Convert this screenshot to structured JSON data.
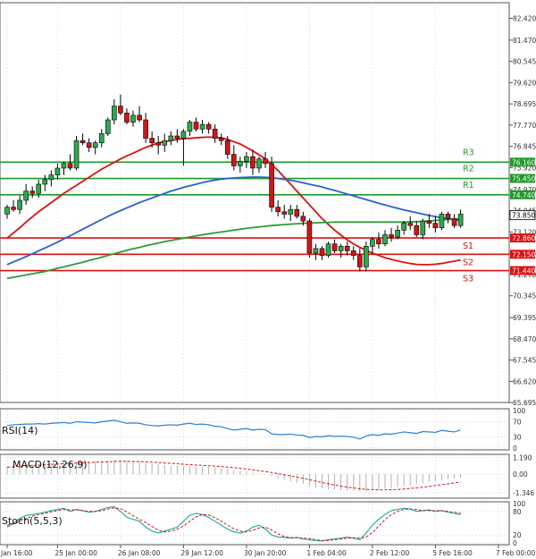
{
  "chart_data": {
    "type": "candlestick",
    "price_axis": {
      "ylim": [
        65.7,
        83.1
      ],
      "tick_labels": [
        "82.420",
        "81.470",
        "80.545",
        "79.620",
        "78.695",
        "77.770",
        "76.845",
        "75.920",
        "74.970",
        "74.045",
        "73.120",
        "72.195",
        "71.270",
        "70.345",
        "69.395",
        "68.470",
        "67.545",
        "66.620",
        "65.695"
      ],
      "current_price": "73.850"
    },
    "time_axis": {
      "labels": [
        "Jan 16:00",
        "25 Jan 00:00",
        "26 Jan 08:00",
        "29 Jan 12:00",
        "30 Jan 20:00",
        "1 Feb 04:00",
        "2 Feb 12:00",
        "5 Feb 16:00",
        "7 Feb 00:00"
      ],
      "label_index": [
        0,
        8,
        18,
        28,
        38,
        48,
        58,
        68,
        78
      ]
    },
    "candles": [
      [
        73.9,
        74.3,
        73.7,
        74.2
      ],
      [
        74.2,
        74.5,
        74.0,
        74.1
      ],
      [
        74.1,
        74.7,
        73.9,
        74.5
      ],
      [
        74.5,
        75.2,
        74.3,
        74.9
      ],
      [
        74.9,
        75.1,
        74.6,
        74.8
      ],
      [
        74.8,
        75.4,
        74.6,
        75.2
      ],
      [
        75.2,
        75.6,
        74.9,
        75.4
      ],
      [
        75.4,
        75.8,
        75.1,
        75.6
      ],
      [
        75.6,
        76.1,
        75.4,
        75.9
      ],
      [
        75.9,
        76.2,
        75.6,
        76.1
      ],
      [
        76.1,
        76.5,
        75.8,
        75.9
      ],
      [
        75.9,
        77.3,
        75.8,
        77.1
      ],
      [
        77.1,
        77.4,
        76.9,
        77.0
      ],
      [
        77.0,
        77.2,
        76.6,
        76.8
      ],
      [
        76.8,
        77.1,
        76.5,
        77.0
      ],
      [
        77.0,
        77.6,
        76.8,
        77.4
      ],
      [
        77.4,
        78.1,
        77.3,
        78.0
      ],
      [
        78.0,
        78.9,
        77.8,
        78.6
      ],
      [
        78.6,
        79.1,
        78.2,
        78.3
      ],
      [
        78.3,
        78.5,
        77.8,
        77.9
      ],
      [
        77.9,
        78.4,
        77.7,
        78.2
      ],
      [
        78.2,
        78.6,
        77.9,
        78.0
      ],
      [
        78.0,
        78.3,
        77.0,
        77.2
      ],
      [
        77.2,
        77.5,
        76.8,
        77.0
      ],
      [
        77.0,
        77.3,
        76.5,
        76.9
      ],
      [
        76.9,
        77.4,
        76.6,
        77.1
      ],
      [
        77.1,
        77.5,
        76.9,
        77.3
      ],
      [
        77.3,
        77.6,
        77.0,
        77.2
      ],
      [
        77.2,
        77.6,
        76.0,
        77.5
      ],
      [
        77.5,
        78.0,
        77.3,
        77.9
      ],
      [
        77.9,
        78.1,
        77.5,
        77.6
      ],
      [
        77.6,
        78.0,
        77.4,
        77.8
      ],
      [
        77.8,
        77.9,
        77.4,
        77.6
      ],
      [
        77.6,
        77.8,
        77.0,
        77.2
      ],
      [
        77.2,
        77.4,
        76.9,
        77.1
      ],
      [
        77.1,
        77.3,
        76.3,
        76.5
      ],
      [
        76.5,
        76.9,
        75.8,
        76.0
      ],
      [
        76.0,
        76.4,
        75.7,
        76.2
      ],
      [
        76.2,
        76.6,
        75.9,
        76.4
      ],
      [
        76.4,
        76.7,
        75.6,
        75.9
      ],
      [
        75.9,
        76.4,
        75.7,
        76.3
      ],
      [
        76.3,
        76.6,
        75.9,
        76.1
      ],
      [
        76.1,
        76.4,
        74.0,
        74.2
      ],
      [
        74.2,
        74.5,
        73.8,
        74.0
      ],
      [
        74.0,
        74.3,
        73.7,
        73.9
      ],
      [
        73.9,
        74.3,
        73.6,
        74.1
      ],
      [
        74.1,
        74.3,
        73.7,
        73.8
      ],
      [
        73.8,
        74.0,
        73.4,
        73.6
      ],
      [
        73.6,
        73.7,
        72.0,
        72.2
      ],
      [
        72.2,
        72.6,
        71.9,
        72.4
      ],
      [
        72.4,
        72.5,
        71.9,
        72.1
      ],
      [
        72.1,
        72.7,
        72.0,
        72.6
      ],
      [
        72.6,
        72.8,
        72.2,
        72.3
      ],
      [
        72.3,
        72.6,
        72.0,
        72.5
      ],
      [
        72.5,
        72.7,
        72.1,
        72.3
      ],
      [
        72.3,
        72.5,
        71.9,
        72.1
      ],
      [
        72.1,
        72.4,
        71.4,
        71.6
      ],
      [
        71.6,
        72.7,
        71.4,
        72.5
      ],
      [
        72.5,
        72.9,
        72.2,
        72.8
      ],
      [
        72.8,
        73.1,
        72.4,
        72.6
      ],
      [
        72.6,
        73.2,
        72.5,
        73.0
      ],
      [
        73.0,
        73.3,
        72.7,
        72.9
      ],
      [
        72.9,
        73.4,
        72.8,
        73.2
      ],
      [
        73.2,
        73.6,
        73.0,
        73.5
      ],
      [
        73.5,
        73.8,
        73.2,
        73.4
      ],
      [
        73.4,
        73.6,
        72.9,
        73.0
      ],
      [
        73.0,
        73.7,
        72.8,
        73.6
      ],
      [
        73.6,
        73.9,
        73.3,
        73.5
      ],
      [
        73.5,
        73.8,
        73.1,
        73.3
      ],
      [
        73.3,
        74.0,
        73.2,
        73.9
      ],
      [
        73.9,
        74.0,
        73.5,
        73.7
      ],
      [
        73.7,
        73.9,
        73.3,
        73.4
      ],
      [
        73.4,
        74.1,
        73.3,
        73.9
      ]
    ],
    "moving_averages": [
      {
        "name": "MA fast (red)",
        "color": "#dd1111",
        "values": [
          72.85,
          73.08,
          73.3,
          73.55,
          73.78,
          74.0,
          74.2,
          74.4,
          74.6,
          74.8,
          74.98,
          75.15,
          75.33,
          75.5,
          75.68,
          75.85,
          76.0,
          76.15,
          76.3,
          76.43,
          76.55,
          76.68,
          76.8,
          76.9,
          77.0,
          77.05,
          77.1,
          77.15,
          77.18,
          77.2,
          77.22,
          77.24,
          77.25,
          77.24,
          77.22,
          77.15,
          77.05,
          76.95,
          76.8,
          76.65,
          76.48,
          76.3,
          76.05,
          75.8,
          75.5,
          75.2,
          74.9,
          74.6,
          74.3,
          74.0,
          73.7,
          73.45,
          73.2,
          72.98,
          72.78,
          72.6,
          72.45,
          72.32,
          72.2,
          72.1,
          72.0,
          71.93,
          71.86,
          71.8,
          71.75,
          71.71,
          71.7,
          71.7,
          71.72,
          71.75,
          71.8,
          71.85,
          71.9
        ]
      },
      {
        "name": "MA medium (blue)",
        "color": "#2b5fd0",
        "values": [
          71.7,
          71.82,
          71.93,
          72.05,
          72.17,
          72.3,
          72.42,
          72.55,
          72.68,
          72.82,
          72.95,
          73.1,
          73.24,
          73.38,
          73.52,
          73.66,
          73.8,
          73.93,
          74.05,
          74.17,
          74.28,
          74.4,
          74.5,
          74.6,
          74.7,
          74.8,
          74.9,
          74.98,
          75.06,
          75.13,
          75.2,
          75.27,
          75.33,
          75.38,
          75.42,
          75.45,
          75.47,
          75.49,
          75.5,
          75.51,
          75.51,
          75.5,
          75.48,
          75.45,
          75.41,
          75.37,
          75.32,
          75.26,
          75.2,
          75.14,
          75.08,
          75.0,
          74.93,
          74.85,
          74.77,
          74.69,
          74.61,
          74.53,
          74.45,
          74.37,
          74.3,
          74.22,
          74.15,
          74.08,
          74.02,
          73.96,
          73.9,
          73.84,
          73.79,
          73.74,
          73.7,
          73.66,
          73.62
        ]
      },
      {
        "name": "MA slow (green)",
        "color": "#2e9a3a",
        "values": [
          71.1,
          71.15,
          71.2,
          71.25,
          71.3,
          71.35,
          71.4,
          71.47,
          71.54,
          71.6,
          71.67,
          71.74,
          71.8,
          71.88,
          71.95,
          72.02,
          72.1,
          72.17,
          72.25,
          72.32,
          72.39,
          72.45,
          72.52,
          72.58,
          72.64,
          72.7,
          72.75,
          72.8,
          72.85,
          72.9,
          72.95,
          73.0,
          73.04,
          73.08,
          73.12,
          73.16,
          73.2,
          73.24,
          73.28,
          73.31,
          73.34,
          73.37,
          73.4,
          73.42,
          73.44,
          73.46,
          73.48,
          73.5,
          73.51,
          73.52,
          73.53,
          73.54,
          73.55,
          73.55,
          73.55,
          73.55,
          73.55,
          73.55,
          73.55,
          73.55,
          73.55,
          73.55,
          73.55,
          73.55,
          73.56,
          73.57,
          73.58,
          73.6,
          73.62,
          73.64,
          73.66,
          73.68,
          73.7
        ]
      }
    ],
    "levels": [
      {
        "name": "R3",
        "value": 76.16,
        "label": "76.160",
        "color": "#1f9a2a"
      },
      {
        "name": "R2",
        "value": 75.45,
        "label": "75.450",
        "color": "#1f9a2a"
      },
      {
        "name": "R1",
        "value": 74.74,
        "label": "74.740",
        "color": "#1f9a2a"
      },
      {
        "name": "S1",
        "value": 72.86,
        "label": "72.860",
        "color": "#dd1111"
      },
      {
        "name": "S2",
        "value": 72.15,
        "label": "72.150",
        "color": "#dd1111"
      },
      {
        "name": "S3",
        "value": 71.44,
        "label": "71.440",
        "color": "#dd1111"
      }
    ],
    "rsi": {
      "label": "RSI(14)",
      "ylim": [
        0,
        100
      ],
      "ticks": [
        "100",
        "70",
        "30",
        "0"
      ],
      "tick_values": [
        100,
        70,
        30,
        0
      ],
      "color": "#2b7fd0",
      "values": [
        60,
        62,
        63,
        64,
        64,
        65,
        64,
        66,
        67,
        68,
        66,
        70,
        69,
        68,
        67,
        70,
        72,
        74,
        70,
        66,
        67,
        66,
        62,
        60,
        59,
        61,
        62,
        61,
        64,
        66,
        63,
        64,
        62,
        58,
        57,
        52,
        48,
        50,
        52,
        48,
        50,
        49,
        38,
        36,
        36,
        37,
        35,
        34,
        28,
        31,
        30,
        33,
        31,
        32,
        31,
        29,
        24,
        32,
        36,
        34,
        38,
        37,
        40,
        43,
        41,
        39,
        44,
        43,
        42,
        47,
        45,
        43,
        48
      ]
    },
    "macd": {
      "label": "MACD(12,26,9)",
      "ylim": [
        -1.6,
        1.3
      ],
      "ticks": [
        "1.190",
        "0.00",
        "-1.346"
      ],
      "tick_values": [
        1.19,
        0.0,
        -1.346
      ],
      "hist_color": "#b0b0b0",
      "signal_color": "#dd1111",
      "histogram": [
        0.55,
        0.6,
        0.65,
        0.7,
        0.72,
        0.75,
        0.78,
        0.8,
        0.82,
        0.85,
        0.85,
        0.9,
        0.92,
        0.93,
        0.93,
        0.95,
        0.98,
        1.02,
        1.0,
        0.95,
        0.92,
        0.88,
        0.82,
        0.76,
        0.7,
        0.66,
        0.62,
        0.6,
        0.58,
        0.57,
        0.55,
        0.54,
        0.52,
        0.48,
        0.44,
        0.38,
        0.3,
        0.24,
        0.18,
        0.1,
        0.05,
        0.0,
        -0.15,
        -0.3,
        -0.42,
        -0.52,
        -0.62,
        -0.7,
        -0.85,
        -0.95,
        -1.02,
        -1.08,
        -1.12,
        -1.16,
        -1.18,
        -1.2,
        -1.25,
        -1.22,
        -1.18,
        -1.12,
        -1.06,
        -1.0,
        -0.93,
        -0.86,
        -0.79,
        -0.72,
        -0.64,
        -0.57,
        -0.5,
        -0.43,
        -0.36,
        -0.3,
        -0.24
      ],
      "signal": [
        0.5,
        0.53,
        0.56,
        0.59,
        0.62,
        0.65,
        0.68,
        0.71,
        0.73,
        0.76,
        0.78,
        0.8,
        0.82,
        0.84,
        0.86,
        0.88,
        0.9,
        0.92,
        0.93,
        0.93,
        0.92,
        0.91,
        0.89,
        0.87,
        0.84,
        0.81,
        0.78,
        0.75,
        0.72,
        0.69,
        0.66,
        0.64,
        0.61,
        0.58,
        0.55,
        0.51,
        0.47,
        0.42,
        0.37,
        0.31,
        0.25,
        0.19,
        0.12,
        0.04,
        -0.04,
        -0.12,
        -0.21,
        -0.3,
        -0.4,
        -0.5,
        -0.6,
        -0.69,
        -0.78,
        -0.86,
        -0.93,
        -0.99,
        -1.05,
        -1.09,
        -1.12,
        -1.13,
        -1.13,
        -1.12,
        -1.1,
        -1.07,
        -1.03,
        -0.99,
        -0.94,
        -0.88,
        -0.82,
        -0.76,
        -0.7,
        -0.63,
        -0.56
      ]
    },
    "stoch": {
      "label": "Stoch(5,5,3)",
      "ylim": [
        0,
        100
      ],
      "ticks": [
        "100",
        "80",
        "20",
        "0"
      ],
      "tick_values": [
        100,
        80,
        20,
        0
      ],
      "k_color": "#1aa5a5",
      "d_color": "#dd1111",
      "k": [
        40,
        50,
        62,
        70,
        72,
        75,
        78,
        82,
        85,
        88,
        80,
        85,
        82,
        78,
        80,
        85,
        90,
        92,
        80,
        65,
        60,
        55,
        40,
        30,
        25,
        30,
        35,
        40,
        55,
        70,
        75,
        72,
        65,
        55,
        45,
        35,
        28,
        25,
        30,
        40,
        45,
        35,
        20,
        15,
        14,
        12,
        14,
        10,
        8,
        6,
        5,
        8,
        10,
        12,
        15,
        12,
        8,
        25,
        45,
        60,
        72,
        82,
        85,
        88,
        86,
        80,
        82,
        84,
        80,
        82,
        78,
        75,
        72
      ],
      "d": [
        45,
        48,
        55,
        62,
        68,
        72,
        75,
        79,
        82,
        85,
        84,
        84,
        82,
        80,
        80,
        82,
        86,
        89,
        87,
        79,
        69,
        60,
        52,
        42,
        32,
        28,
        30,
        35,
        43,
        55,
        66,
        72,
        71,
        64,
        55,
        45,
        36,
        30,
        28,
        32,
        38,
        40,
        33,
        23,
        16,
        14,
        13,
        12,
        11,
        8,
        6,
        6,
        8,
        10,
        12,
        13,
        12,
        15,
        26,
        43,
        59,
        72,
        80,
        85,
        86,
        85,
        82,
        82,
        82,
        82,
        80,
        78,
        75
      ]
    }
  }
}
